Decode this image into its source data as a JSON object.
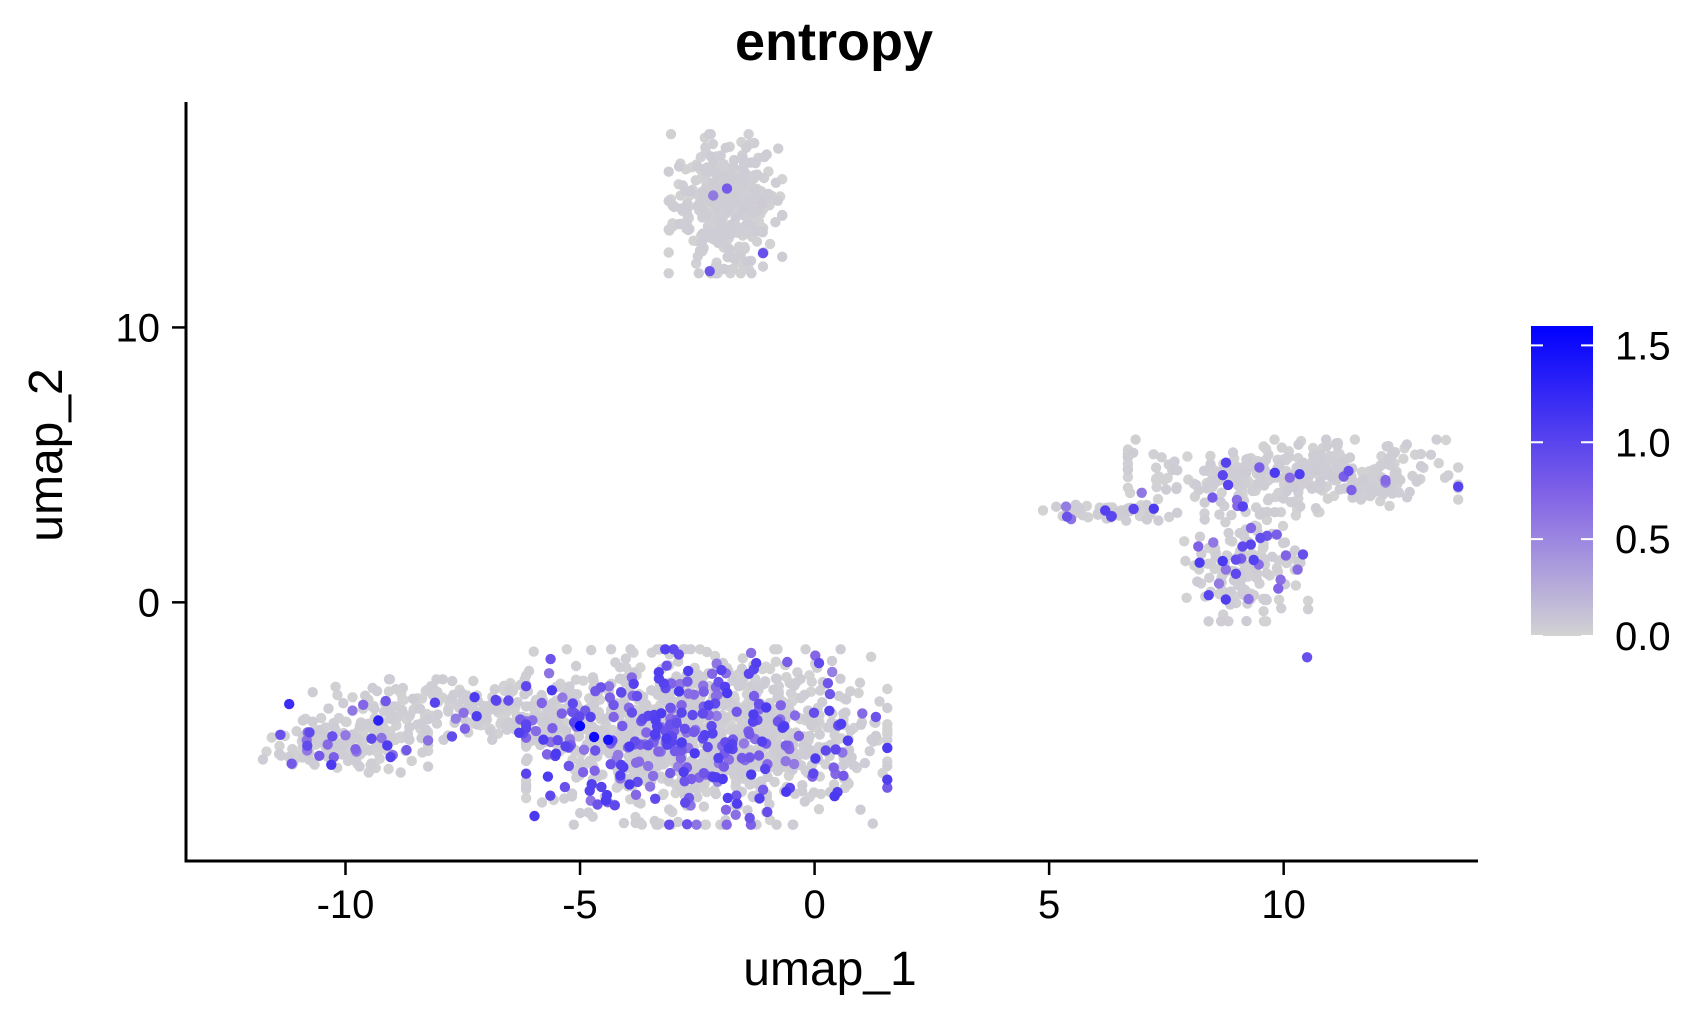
{
  "chart_data": {
    "type": "scatter",
    "title": "entropy",
    "xlabel": "umap_1",
    "ylabel": "umap_2",
    "xlim": [
      -13.4,
      14.1
    ],
    "ylim": [
      -9.3,
      18.2
    ],
    "xticks": [
      {
        "value": -10,
        "label": "-10"
      },
      {
        "value": -5,
        "label": "-5"
      },
      {
        "value": 0,
        "label": "0"
      },
      {
        "value": 5,
        "label": "5"
      },
      {
        "value": 10,
        "label": "10"
      }
    ],
    "yticks": [
      {
        "value": 0,
        "label": "0"
      },
      {
        "value": 10,
        "label": "10"
      }
    ],
    "grid": false,
    "legend": {
      "position": "right",
      "type": "colorbar",
      "min": 0.0,
      "max": 1.6,
      "low_color": "#d3d3d3",
      "high_color": "#0000ff",
      "ticks": [
        {
          "value": 0.0,
          "label": "0.0"
        },
        {
          "value": 0.5,
          "label": "0.5"
        },
        {
          "value": 1.0,
          "label": "1.0"
        },
        {
          "value": 1.5,
          "label": "1.5"
        }
      ]
    },
    "clusters": [
      {
        "cx": -1.9,
        "cy": 14.5,
        "sx": 0.55,
        "sy": 1.15,
        "n": 360,
        "high_frac": 0.01
      },
      {
        "cx": -2.3,
        "cy": -4.9,
        "sx": 1.75,
        "sy": 1.45,
        "n": 1150,
        "high_frac": 0.2
      },
      {
        "cx": -4.3,
        "cy": -4.6,
        "sx": 1.0,
        "sy": 0.85,
        "n": 160,
        "high_frac": 0.28
      },
      {
        "cx": -7.4,
        "cy": -3.9,
        "sx": 1.5,
        "sy": 0.5,
        "n": 230,
        "high_frac": 0.06
      },
      {
        "cx": -10.0,
        "cy": -5.2,
        "sx": 0.8,
        "sy": 0.45,
        "n": 170,
        "high_frac": 0.12
      },
      {
        "cx": 10.2,
        "cy": 4.6,
        "sx": 1.6,
        "sy": 0.6,
        "n": 360,
        "high_frac": 0.03
      },
      {
        "cx": 9.2,
        "cy": 1.4,
        "sx": 0.6,
        "sy": 0.95,
        "n": 170,
        "high_frac": 0.16
      },
      {
        "cx": 6.3,
        "cy": 3.3,
        "sx": 0.65,
        "sy": 0.15,
        "n": 55,
        "high_frac": 0.18
      }
    ],
    "highlights": [
      {
        "x": -5.0,
        "y": -4.5,
        "value": 1.55
      },
      {
        "x": -4.7,
        "y": -4.9,
        "value": 1.5
      },
      {
        "x": -4.4,
        "y": -5.0,
        "value": 1.45
      },
      {
        "x": -9.3,
        "y": -4.3,
        "value": 1.3
      },
      {
        "x": -11.2,
        "y": -3.7,
        "value": 1.2
      },
      {
        "x": -5.6,
        "y": -3.2,
        "value": 1.1
      },
      {
        "x": -1.4,
        "y": -2.6,
        "value": 1.0
      },
      {
        "x": -2.6,
        "y": -4.1,
        "value": 0.95
      },
      {
        "x": 6.8,
        "y": 3.4,
        "value": 1.0
      },
      {
        "x": 8.7,
        "y": 1.5,
        "value": 1.1
      },
      {
        "x": 9.3,
        "y": 2.1,
        "value": 1.0
      },
      {
        "x": 10.5,
        "y": -2.0,
        "value": 0.9
      },
      {
        "x": -1.1,
        "y": 12.7,
        "value": 0.9
      }
    ]
  }
}
